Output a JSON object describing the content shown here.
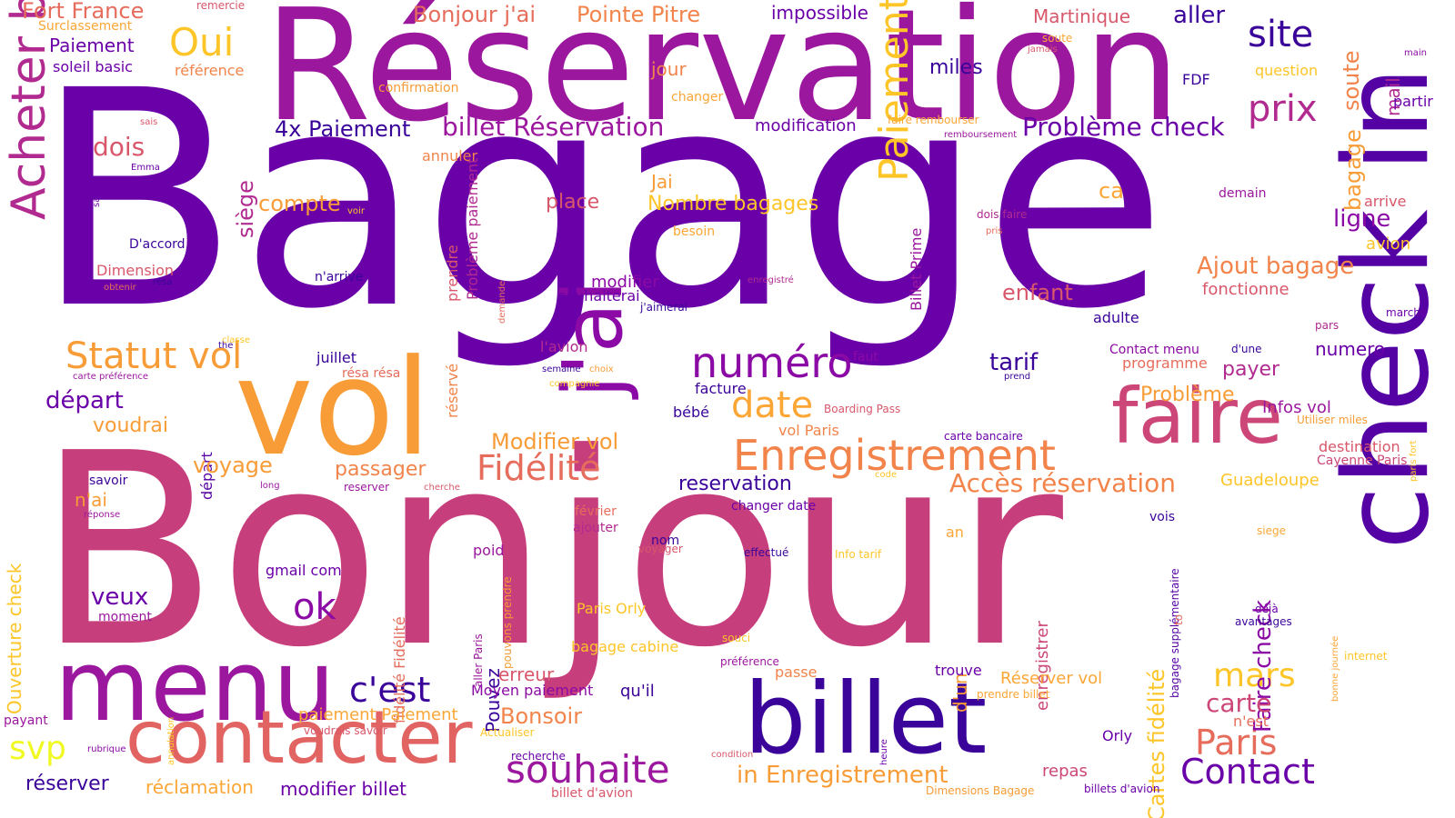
{
  "background": "#ffffff",
  "words": [
    {
      "text": "Bagage",
      "color": "#6a00a8"
    },
    {
      "text": "Bonjour",
      "color": "#c73e7c"
    },
    {
      "text": "Réservation",
      "color": "#9b179e"
    },
    {
      "text": "vol",
      "color": "#f79c36"
    },
    {
      "text": "check in",
      "color": "#5402a3"
    },
    {
      "text": "billet",
      "color": "#3a049a"
    },
    {
      "text": "menu",
      "color": "#9b179e"
    },
    {
      "text": "contacter",
      "color": "#e16462"
    },
    {
      "text": "faire",
      "color": "#cc4778"
    },
    {
      "text": "j'ai",
      "color": "#8b0aa5"
    },
    {
      "text": "Enregistrement",
      "color": "#f2844b"
    },
    {
      "text": "Acheter billet",
      "color": "#b12a90"
    },
    {
      "text": "Paiement 4x",
      "color": "#fdc527"
    },
    {
      "text": "numéro",
      "color": "#8b0aa5"
    },
    {
      "text": "Oui",
      "color": "#fdc527"
    },
    {
      "text": "Statut vol",
      "color": "#f79c36"
    },
    {
      "text": "date",
      "color": "#fca636"
    },
    {
      "text": "Fidélité",
      "color": "#e66c5c"
    },
    {
      "text": "Contact",
      "color": "#6a00a8"
    },
    {
      "text": "souhaite",
      "color": "#9b179e"
    },
    {
      "text": "Paris",
      "color": "#e66c5c"
    },
    {
      "text": "c'est",
      "color": "#3a049a"
    },
    {
      "text": "site",
      "color": "#3a049a"
    },
    {
      "text": "prix",
      "color": "#b12a90"
    },
    {
      "text": "ok",
      "color": "#8b0aa5"
    },
    {
      "text": "mars",
      "color": "#fdc527"
    },
    {
      "text": "svp",
      "color": "#f0f921"
    },
    {
      "text": "Fort France",
      "color": "#e66c5c"
    },
    {
      "text": "Bonjour j'ai",
      "color": "#e66c5c"
    },
    {
      "text": "Pointe Pitre",
      "color": "#f2844b"
    },
    {
      "text": "impossible",
      "color": "#6a00a8"
    },
    {
      "text": "Martinique",
      "color": "#d8576b"
    },
    {
      "text": "aller",
      "color": "#3a049a"
    },
    {
      "text": "remercie",
      "color": "#d8576b"
    },
    {
      "text": "Surclassement",
      "color": "#fca636"
    },
    {
      "text": "Paiement",
      "color": "#6a00a8"
    },
    {
      "text": "soleil basic",
      "color": "#6a00a8"
    },
    {
      "text": "référence",
      "color": "#f2844b"
    },
    {
      "text": "confirmation",
      "color": "#f79c36"
    },
    {
      "text": "miles",
      "color": "#3a049a"
    },
    {
      "text": "jour",
      "color": "#f2844b"
    },
    {
      "text": "changer",
      "color": "#fca636"
    },
    {
      "text": "question",
      "color": "#fdc527"
    },
    {
      "text": "FDF",
      "color": "#3a049a"
    },
    {
      "text": "soute",
      "color": "#fca636"
    },
    {
      "text": "jamais",
      "color": "#d8576b"
    },
    {
      "text": "soute",
      "color": "#f2844b"
    },
    {
      "text": "mail",
      "color": "#b12a90"
    },
    {
      "text": "main",
      "color": "#8b0aa5"
    },
    {
      "text": "partir",
      "color": "#6a00a8"
    },
    {
      "text": "4x Paiement",
      "color": "#3a049a"
    },
    {
      "text": "billet Réservation",
      "color": "#9b179e"
    },
    {
      "text": "Problème check",
      "color": "#6a00a8"
    },
    {
      "text": "modification",
      "color": "#6a00a8"
    },
    {
      "text": "faire rembourser",
      "color": "#fca636"
    },
    {
      "text": "remboursement",
      "color": "#9b179e"
    },
    {
      "text": "dois",
      "color": "#d8576b"
    },
    {
      "text": "annuler",
      "color": "#f2844b"
    },
    {
      "text": "siège",
      "color": "#b12a90"
    },
    {
      "text": "compte",
      "color": "#f79c36"
    },
    {
      "text": "place",
      "color": "#d8576b"
    },
    {
      "text": "Jai",
      "color": "#f79c36"
    },
    {
      "text": "Nombre bagages",
      "color": "#fdc527"
    },
    {
      "text": "ca",
      "color": "#fca636"
    },
    {
      "text": "bagage",
      "color": "#f79c36"
    },
    {
      "text": "ligne",
      "color": "#8b0aa5"
    },
    {
      "text": "arrive",
      "color": "#d8576b"
    },
    {
      "text": "avion",
      "color": "#fdc527"
    },
    {
      "text": "sais",
      "color": "#d8576b"
    },
    {
      "text": "sac",
      "color": "#6a00a8"
    },
    {
      "text": "Emma",
      "color": "#6a00a8"
    },
    {
      "text": "voir",
      "color": "#fdc527"
    },
    {
      "text": "besoin",
      "color": "#fca636"
    },
    {
      "text": "demain",
      "color": "#9b179e"
    },
    {
      "text": "dois faire",
      "color": "#b12a90"
    },
    {
      "text": "pris",
      "color": "#e66c5c"
    },
    {
      "text": "D'accord",
      "color": "#3a049a"
    },
    {
      "text": "Dimension",
      "color": "#d8576b"
    },
    {
      "text": "obtenir",
      "color": "#e66c5c"
    },
    {
      "text": "résa",
      "color": "#3a049a"
    },
    {
      "text": "n'arrive",
      "color": "#3a049a"
    },
    {
      "text": "prendre",
      "color": "#d8576b"
    },
    {
      "text": "Problème paiement",
      "color": "#b12a90"
    },
    {
      "text": "demande",
      "color": "#e66c5c"
    },
    {
      "text": "modifier",
      "color": "#8b0aa5"
    },
    {
      "text": "souhaiterai",
      "color": "#6a00a8"
    },
    {
      "text": "j'aimerai",
      "color": "#3a049a"
    },
    {
      "text": "enregistré",
      "color": "#b12a90"
    },
    {
      "text": "Billet Prime",
      "color": "#9b179e"
    },
    {
      "text": "Ajout bagage",
      "color": "#f2844b"
    },
    {
      "text": "fonctionne",
      "color": "#d8576b"
    },
    {
      "text": "enfant",
      "color": "#d8576b"
    },
    {
      "text": "adulte",
      "color": "#3a049a"
    },
    {
      "text": "marche",
      "color": "#6a00a8"
    },
    {
      "text": "pars",
      "color": "#b12a90"
    },
    {
      "text": "classe",
      "color": "#fdc527"
    },
    {
      "text": "the",
      "color": "#3a049a"
    },
    {
      "text": "carte préférence",
      "color": "#9b179e"
    },
    {
      "text": "l'avion",
      "color": "#b12a90"
    },
    {
      "text": "réservé",
      "color": "#f2844b"
    },
    {
      "text": "semaine",
      "color": "#3a049a"
    },
    {
      "text": "choix",
      "color": "#f79c36"
    },
    {
      "text": "compagnie",
      "color": "#fdc527"
    },
    {
      "text": "faut",
      "color": "#8b0aa5"
    },
    {
      "text": "tarif",
      "color": "#3a049a"
    },
    {
      "text": "prend",
      "color": "#3a049a"
    },
    {
      "text": "Contact menu",
      "color": "#8b0aa5"
    },
    {
      "text": "programme",
      "color": "#e66c5c"
    },
    {
      "text": "d'une",
      "color": "#3a049a"
    },
    {
      "text": "numero",
      "color": "#6a00a8"
    },
    {
      "text": "payer",
      "color": "#b12a90"
    },
    {
      "text": "paris fort",
      "color": "#fdc527"
    },
    {
      "text": "juillet",
      "color": "#3a049a"
    },
    {
      "text": "résa résa",
      "color": "#e66c5c"
    },
    {
      "text": "départ",
      "color": "#6a00a8"
    },
    {
      "text": "départ",
      "color": "#5402a3"
    },
    {
      "text": "facture",
      "color": "#3a049a"
    },
    {
      "text": "bébé",
      "color": "#3a049a"
    },
    {
      "text": "Boarding Pass",
      "color": "#d8576b"
    },
    {
      "text": "Problème",
      "color": "#f79c36"
    },
    {
      "text": "Infos vol",
      "color": "#9b179e"
    },
    {
      "text": "Utiliser miles",
      "color": "#f79c36"
    },
    {
      "text": "voudrai",
      "color": "#f79c36"
    },
    {
      "text": "vol Paris",
      "color": "#f2844b"
    },
    {
      "text": "carte bancaire",
      "color": "#6a00a8"
    },
    {
      "text": "destination",
      "color": "#d8576b"
    },
    {
      "text": "Cayenne Paris",
      "color": "#cc4778"
    },
    {
      "text": "Modifier vol",
      "color": "#f79c36"
    },
    {
      "text": "voyage",
      "color": "#f79c36"
    },
    {
      "text": "passager",
      "color": "#f2844b"
    },
    {
      "text": "Ouverture check",
      "color": "#fdc527"
    },
    {
      "text": "savoir",
      "color": "#3a049a"
    },
    {
      "text": "long",
      "color": "#9b179e"
    },
    {
      "text": "reserver",
      "color": "#9b179e"
    },
    {
      "text": "cherche",
      "color": "#d8576b"
    },
    {
      "text": "code",
      "color": "#fdc527"
    },
    {
      "text": "Accès réservation",
      "color": "#f2844b"
    },
    {
      "text": "Guadeloupe",
      "color": "#fdc527"
    },
    {
      "text": "n'ai",
      "color": "#f79c36"
    },
    {
      "text": "réponse",
      "color": "#9b179e"
    },
    {
      "text": "reservation",
      "color": "#3a049a"
    },
    {
      "text": "changer date",
      "color": "#6a00a8"
    },
    {
      "text": "février",
      "color": "#e66c5c"
    },
    {
      "text": "ajouter",
      "color": "#b12a90"
    },
    {
      "text": "an",
      "color": "#fca636"
    },
    {
      "text": "vois",
      "color": "#3a049a"
    },
    {
      "text": "siege",
      "color": "#fca636"
    },
    {
      "text": "fidélité Fidélité",
      "color": "#e66c5c"
    },
    {
      "text": "enregistrer",
      "color": "#cc4778"
    },
    {
      "text": "Cartes fidélité",
      "color": "#fdc527"
    },
    {
      "text": "gmail com",
      "color": "#6a00a8"
    },
    {
      "text": "poid",
      "color": "#9b179e"
    },
    {
      "text": "nom",
      "color": "#3a049a"
    },
    {
      "text": "voyager",
      "color": "#d8576b"
    },
    {
      "text": "effectué",
      "color": "#3a049a"
    },
    {
      "text": "Info tarif",
      "color": "#fdc527"
    },
    {
      "text": "d'un",
      "color": "#f79c36"
    },
    {
      "text": "veux",
      "color": "#6a00a8"
    },
    {
      "text": "moment",
      "color": "#9b179e"
    },
    {
      "text": "Paris Orly",
      "color": "#fdc527"
    },
    {
      "text": "aller Paris",
      "color": "#9b179e"
    },
    {
      "text": "pouvons prendre",
      "color": "#f79c36"
    },
    {
      "text": "Pouvez",
      "color": "#3a049a"
    },
    {
      "text": "bagage supplémentaire",
      "color": "#5402a3"
    },
    {
      "text": "to",
      "color": "#e66c5c"
    },
    {
      "text": "déjà",
      "color": "#6a00a8"
    },
    {
      "text": "Faire check",
      "color": "#8b0aa5"
    },
    {
      "text": "avantages",
      "color": "#3a049a"
    },
    {
      "text": "bonne journée",
      "color": "#fca636"
    },
    {
      "text": "internet",
      "color": "#fdc527"
    },
    {
      "text": "bagage cabine",
      "color": "#fdc527"
    },
    {
      "text": "souci",
      "color": "#fdc527"
    },
    {
      "text": "préférence",
      "color": "#9b179e"
    },
    {
      "text": "passe",
      "color": "#f2844b"
    },
    {
      "text": "trouve",
      "color": "#6a00a8"
    },
    {
      "text": "Réserver vol",
      "color": "#fca636"
    },
    {
      "text": "annulation",
      "color": "#fdc527"
    },
    {
      "text": "erreur",
      "color": "#d8576b"
    },
    {
      "text": "Moyen paiement",
      "color": "#8b0aa5"
    },
    {
      "text": "qu'il",
      "color": "#3a049a"
    },
    {
      "text": "prendre billet",
      "color": "#fca636"
    },
    {
      "text": "heure",
      "color": "#6a00a8"
    },
    {
      "text": "carte",
      "color": "#cc4778"
    },
    {
      "text": "n'est",
      "color": "#e66c5c"
    },
    {
      "text": "payant",
      "color": "#9b179e"
    },
    {
      "text": "paiement Paiement",
      "color": "#fca636"
    },
    {
      "text": "Bonsoir",
      "color": "#f2844b"
    },
    {
      "text": "voudrais savoir",
      "color": "#d8576b"
    },
    {
      "text": "Actualiser",
      "color": "#fdc527"
    },
    {
      "text": "rubrique",
      "color": "#8b0aa5"
    },
    {
      "text": "recherche",
      "color": "#6a00a8"
    },
    {
      "text": "condition",
      "color": "#d8576b"
    },
    {
      "text": "Orly",
      "color": "#6a00a8"
    },
    {
      "text": "réserver",
      "color": "#3a049a"
    },
    {
      "text": "réclamation",
      "color": "#fca636"
    },
    {
      "text": "modifier billet",
      "color": "#6a00a8"
    },
    {
      "text": "in Enregistrement",
      "color": "#f79c36"
    },
    {
      "text": "repas",
      "color": "#cc4778"
    },
    {
      "text": "billet d'avion",
      "color": "#d8576b"
    },
    {
      "text": "Dimensions Bagage",
      "color": "#f79c36"
    },
    {
      "text": "billets d'avion",
      "color": "#6a00a8"
    }
  ]
}
